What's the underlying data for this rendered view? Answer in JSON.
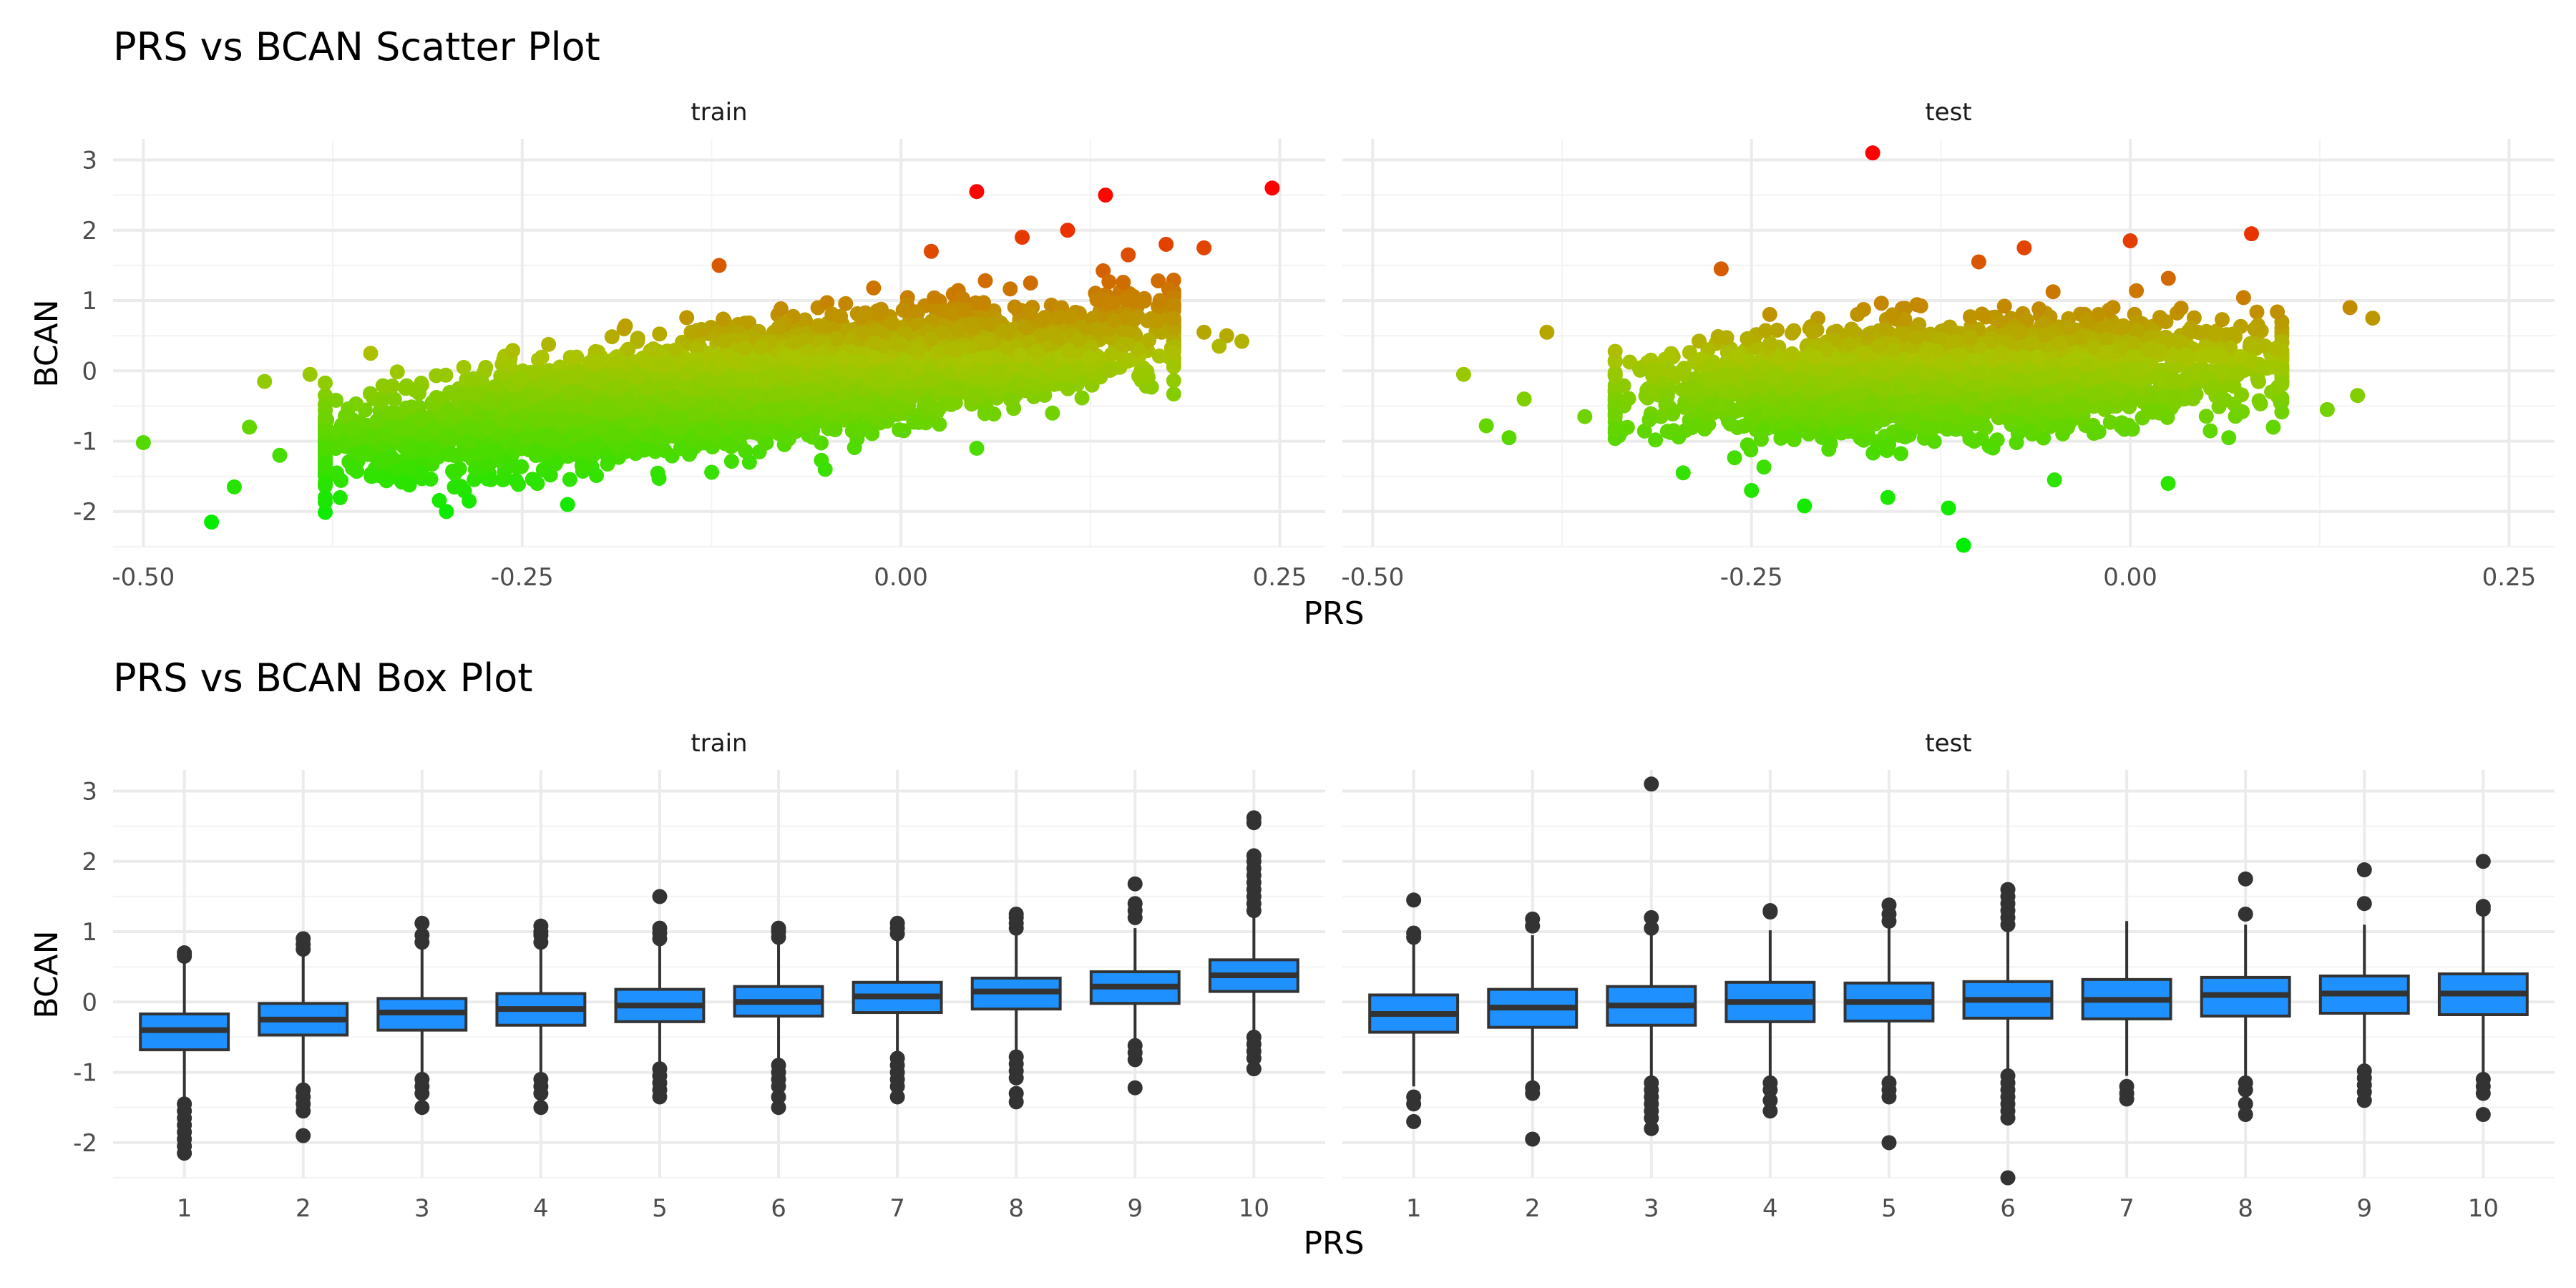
{
  "chart_data": [
    {
      "type": "scatter",
      "title": "PRS vs BCAN Scatter Plot",
      "xlabel": "PRS",
      "ylabel": "BCAN",
      "facets": [
        "train",
        "test"
      ],
      "xlim": [
        -0.52,
        0.28
      ],
      "ylim": [
        -2.5,
        3.3
      ],
      "x_ticks": [
        -0.5,
        -0.25,
        0.0,
        0.25
      ],
      "x_tick_labels": [
        "-0.50",
        "-0.25",
        "0.00",
        "0.25"
      ],
      "y_ticks": [
        -2,
        -1,
        0,
        1,
        2,
        3
      ],
      "y_tick_labels": [
        "-2",
        "-1",
        "0",
        "1",
        "2",
        "3"
      ],
      "grid": true,
      "color_scale": {
        "low": "#00ee00",
        "mid": "#aac400",
        "high": "#ff0000"
      },
      "series": [
        {
          "facet": "train",
          "approx_slope": 2.9,
          "approx_intercept": 0.07,
          "approx_x_range": [
            -0.38,
            0.18
          ],
          "approx_residual_sd": 0.35,
          "points": [
            [
              -0.5,
              -1.02
            ],
            [
              -0.455,
              -2.15
            ],
            [
              -0.44,
              -1.65
            ],
            [
              -0.43,
              -0.8
            ],
            [
              -0.42,
              -0.15
            ],
            [
              -0.41,
              -1.2
            ],
            [
              -0.39,
              -0.05
            ],
            [
              -0.38,
              -1.8
            ],
            [
              -0.35,
              0.25
            ],
            [
              -0.3,
              -2.0
            ],
            [
              -0.285,
              -1.85
            ],
            [
              -0.24,
              -1.6
            ],
            [
              -0.22,
              -1.9
            ],
            [
              -0.12,
              1.5
            ],
            [
              -0.1,
              -1.3
            ],
            [
              -0.05,
              -1.4
            ],
            [
              0.02,
              1.7
            ],
            [
              0.05,
              2.55
            ],
            [
              0.08,
              1.9
            ],
            [
              0.11,
              2.0
            ],
            [
              0.135,
              2.5
            ],
            [
              0.15,
              1.65
            ],
            [
              0.175,
              1.8
            ],
            [
              0.2,
              1.75
            ],
            [
              0.245,
              2.6
            ],
            [
              0.2,
              0.55
            ],
            [
              0.215,
              0.5
            ],
            [
              0.225,
              0.42
            ],
            [
              0.21,
              0.35
            ],
            [
              0.1,
              -0.6
            ],
            [
              0.05,
              -1.1
            ]
          ]
        },
        {
          "facet": "test",
          "approx_slope": 1.25,
          "approx_intercept": 0.05,
          "approx_x_range": [
            -0.34,
            0.1
          ],
          "approx_residual_sd": 0.35,
          "points": [
            [
              -0.44,
              -0.05
            ],
            [
              -0.425,
              -0.78
            ],
            [
              -0.41,
              -0.95
            ],
            [
              -0.4,
              -0.4
            ],
            [
              -0.385,
              0.55
            ],
            [
              -0.36,
              -0.65
            ],
            [
              -0.27,
              1.45
            ],
            [
              -0.25,
              -1.7
            ],
            [
              -0.215,
              -1.92
            ],
            [
              -0.17,
              3.1
            ],
            [
              -0.16,
              -1.8
            ],
            [
              -0.12,
              -1.95
            ],
            [
              -0.11,
              -2.48
            ],
            [
              -0.1,
              1.55
            ],
            [
              -0.07,
              1.75
            ],
            [
              -0.05,
              -1.55
            ],
            [
              0.0,
              1.85
            ],
            [
              0.025,
              -1.6
            ],
            [
              0.065,
              -0.95
            ],
            [
              0.08,
              1.95
            ],
            [
              0.13,
              -0.55
            ],
            [
              0.15,
              -0.35
            ],
            [
              0.16,
              0.75
            ],
            [
              0.145,
              0.9
            ]
          ]
        }
      ]
    },
    {
      "type": "box",
      "title": "PRS vs BCAN Box Plot",
      "xlabel": "PRS",
      "ylabel": "BCAN",
      "facets": [
        "train",
        "test"
      ],
      "categories": [
        "1",
        "2",
        "3",
        "4",
        "5",
        "6",
        "7",
        "8",
        "9",
        "10"
      ],
      "ylim": [
        -2.5,
        3.3
      ],
      "y_ticks": [
        -2,
        -1,
        0,
        1,
        2,
        3
      ],
      "y_tick_labels": [
        "-2",
        "-1",
        "0",
        "1",
        "2",
        "3"
      ],
      "grid": true,
      "box_fill": "#1e90ff",
      "series": [
        {
          "facet": "train",
          "boxes": [
            {
              "category": "1",
              "q1": -0.68,
              "median": -0.4,
              "q3": -0.17,
              "whisker_low": -1.35,
              "whisker_high": 0.58,
              "outliers": [
                -1.45,
                -1.55,
                -1.65,
                -1.75,
                -1.85,
                -1.95,
                -2.05,
                -2.15,
                0.65,
                0.7
              ]
            },
            {
              "category": "2",
              "q1": -0.47,
              "median": -0.25,
              "q3": -0.02,
              "whisker_low": -1.15,
              "whisker_high": 0.65,
              "outliers": [
                -1.25,
                -1.35,
                -1.45,
                -1.55,
                -1.9,
                0.75,
                0.82,
                0.9
              ]
            },
            {
              "category": "3",
              "q1": -0.4,
              "median": -0.15,
              "q3": 0.05,
              "whisker_low": -1.0,
              "whisker_high": 0.75,
              "outliers": [
                -1.1,
                -1.2,
                -1.3,
                -1.5,
                0.85,
                0.95,
                1.12
              ]
            },
            {
              "category": "4",
              "q1": -0.33,
              "median": -0.1,
              "q3": 0.12,
              "whisker_low": -1.0,
              "whisker_high": 0.78,
              "outliers": [
                -1.1,
                -1.2,
                -1.3,
                -1.5,
                0.85,
                0.95,
                1.0,
                1.08
              ]
            },
            {
              "category": "5",
              "q1": -0.28,
              "median": -0.05,
              "q3": 0.18,
              "whisker_low": -0.9,
              "whisker_high": 0.82,
              "outliers": [
                -0.95,
                -1.05,
                -1.15,
                -1.25,
                -1.35,
                0.9,
                0.98,
                1.05,
                1.5
              ]
            },
            {
              "category": "6",
              "q1": -0.2,
              "median": 0.0,
              "q3": 0.22,
              "whisker_low": -0.8,
              "whisker_high": 0.85,
              "outliers": [
                -0.9,
                -1.0,
                -1.1,
                -1.2,
                -1.35,
                -1.5,
                0.92,
                1.0,
                1.05
              ]
            },
            {
              "category": "7",
              "q1": -0.15,
              "median": 0.08,
              "q3": 0.28,
              "whisker_low": -0.75,
              "whisker_high": 0.9,
              "outliers": [
                -0.8,
                -0.9,
                -1.0,
                -1.1,
                -1.2,
                -1.35,
                0.97,
                1.05,
                1.12
              ]
            },
            {
              "category": "8",
              "q1": -0.1,
              "median": 0.15,
              "q3": 0.34,
              "whisker_low": -0.7,
              "whisker_high": 0.95,
              "outliers": [
                -0.78,
                -0.88,
                -0.98,
                -1.08,
                -1.3,
                -1.42,
                1.05,
                1.12,
                1.2,
                1.25
              ]
            },
            {
              "category": "9",
              "q1": -0.02,
              "median": 0.22,
              "q3": 0.43,
              "whisker_low": -0.55,
              "whisker_high": 1.05,
              "outliers": [
                -0.62,
                -0.72,
                -0.82,
                -1.22,
                1.2,
                1.3,
                1.4,
                1.68
              ]
            },
            {
              "category": "10",
              "q1": 0.15,
              "median": 0.38,
              "q3": 0.6,
              "whisker_low": -0.4,
              "whisker_high": 1.2,
              "outliers": [
                -0.5,
                -0.6,
                -0.7,
                -0.8,
                -0.95,
                1.3,
                1.4,
                1.5,
                1.6,
                1.7,
                1.8,
                1.9,
                2.0,
                2.08,
                2.55,
                2.62
              ]
            }
          ]
        },
        {
          "facet": "test",
          "boxes": [
            {
              "category": "1",
              "q1": -0.43,
              "median": -0.17,
              "q3": 0.1,
              "whisker_low": -1.2,
              "whisker_high": 0.85,
              "outliers": [
                -1.35,
                -1.45,
                -1.7,
                0.92,
                0.98,
                1.45
              ]
            },
            {
              "category": "2",
              "q1": -0.36,
              "median": -0.08,
              "q3": 0.18,
              "whisker_low": -1.15,
              "whisker_high": 0.95,
              "outliers": [
                -1.22,
                -1.3,
                -1.95,
                1.08,
                1.18
              ]
            },
            {
              "category": "3",
              "q1": -0.33,
              "median": -0.05,
              "q3": 0.22,
              "whisker_low": -1.05,
              "whisker_high": 0.98,
              "outliers": [
                -1.15,
                -1.25,
                -1.35,
                -1.45,
                -1.55,
                -1.65,
                -1.8,
                1.05,
                1.2,
                3.1
              ]
            },
            {
              "category": "4",
              "q1": -0.28,
              "median": 0.0,
              "q3": 0.28,
              "whisker_low": -1.05,
              "whisker_high": 1.02,
              "outliers": [
                -1.15,
                -1.25,
                -1.4,
                -1.55,
                1.28,
                1.3
              ]
            },
            {
              "category": "5",
              "q1": -0.27,
              "median": 0.0,
              "q3": 0.27,
              "whisker_low": -1.05,
              "whisker_high": 1.05,
              "outliers": [
                -1.15,
                -1.25,
                -1.35,
                -2.0,
                1.15,
                1.25,
                1.38
              ]
            },
            {
              "category": "6",
              "q1": -0.23,
              "median": 0.03,
              "q3": 0.29,
              "whisker_low": -0.95,
              "whisker_high": 1.05,
              "outliers": [
                -1.05,
                -1.15,
                -1.25,
                -1.35,
                -1.45,
                -1.55,
                -1.65,
                -2.5,
                1.1,
                1.2,
                1.3,
                1.4,
                1.5,
                1.6
              ]
            },
            {
              "category": "7",
              "q1": -0.24,
              "median": 0.03,
              "q3": 0.32,
              "whisker_low": -1.05,
              "whisker_high": 1.15,
              "outliers": [
                -1.2,
                -1.3,
                -1.38
              ]
            },
            {
              "category": "8",
              "q1": -0.2,
              "median": 0.1,
              "q3": 0.35,
              "whisker_low": -1.05,
              "whisker_high": 1.1,
              "outliers": [
                -1.15,
                -1.25,
                -1.45,
                -1.6,
                1.25,
                1.75
              ]
            },
            {
              "category": "9",
              "q1": -0.16,
              "median": 0.12,
              "q3": 0.37,
              "whisker_low": -0.9,
              "whisker_high": 1.1,
              "outliers": [
                -0.98,
                -1.08,
                -1.18,
                -1.28,
                -1.4,
                1.4,
                1.88
              ]
            },
            {
              "category": "10",
              "q1": -0.18,
              "median": 0.12,
              "q3": 0.4,
              "whisker_low": -1.0,
              "whisker_high": 1.25,
              "outliers": [
                -1.1,
                -1.2,
                -1.3,
                -1.6,
                1.32,
                1.36,
                2.0
              ]
            }
          ]
        }
      ]
    }
  ]
}
